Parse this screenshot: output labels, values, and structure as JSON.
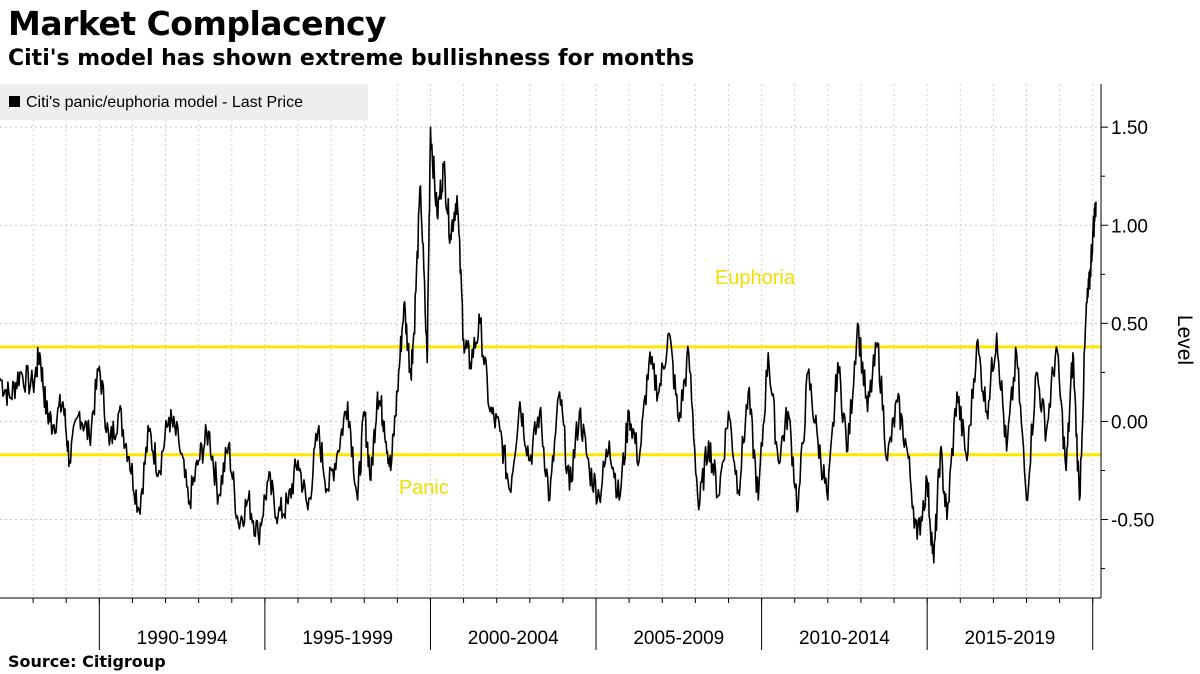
{
  "header": {
    "title": "Market Complacency",
    "subtitle": "Citi's model has shown extreme bullishness for months"
  },
  "footer": {
    "source": "Source:  Citigroup"
  },
  "chart_data": {
    "type": "line",
    "title": "Market Complacency",
    "subtitle": "Citi's model has shown extreme bullishness for months",
    "ylabel": "Level",
    "xlabel": "",
    "ylim": [
      -0.9,
      1.72
    ],
    "xlim": [
      1987,
      2020.25
    ],
    "yticks": [
      -0.5,
      0.0,
      0.5,
      1.0,
      1.5
    ],
    "ytick_labels": [
      "-0.50",
      "0.00",
      "0.50",
      "1.00",
      "1.50"
    ],
    "x_periods": [
      {
        "label": "1990-1994",
        "start": 1990,
        "end": 1995
      },
      {
        "label": "1995-1999",
        "start": 1995,
        "end": 2000
      },
      {
        "label": "2000-2004",
        "start": 2000,
        "end": 2005
      },
      {
        "label": "2005-2009",
        "start": 2005,
        "end": 2010
      },
      {
        "label": "2010-2014",
        "start": 2010,
        "end": 2015
      },
      {
        "label": "2015-2019",
        "start": 2015,
        "end": 2020
      }
    ],
    "legend": {
      "label": "Citi's panic/euphoria model - Last Price",
      "position": "top-left"
    },
    "reference_lines": [
      {
        "name": "euphoria-threshold",
        "label": "Euphoria",
        "value": 0.38,
        "color": "#FFE600"
      },
      {
        "name": "panic-threshold",
        "label": "Panic",
        "value": -0.17,
        "color": "#FFE600"
      }
    ],
    "annotations": [
      {
        "text": "Euphoria",
        "x": 2009.8,
        "y": 0.7
      },
      {
        "text": "Panic",
        "x": 1999.8,
        "y": -0.37
      }
    ],
    "series": [
      {
        "name": "Citi's panic/euphoria model - Last Price",
        "color": "#000000",
        "x": [
          1987.0,
          1987.3,
          1987.6,
          1988.0,
          1988.2,
          1988.4,
          1988.6,
          1988.9,
          1989.1,
          1989.4,
          1989.7,
          1990.0,
          1990.3,
          1990.6,
          1990.9,
          1991.2,
          1991.5,
          1991.8,
          1992.1,
          1992.4,
          1992.7,
          1993.0,
          1993.3,
          1993.6,
          1993.9,
          1994.2,
          1994.5,
          1994.8,
          1995.1,
          1995.4,
          1995.7,
          1996.0,
          1996.3,
          1996.6,
          1996.9,
          1997.2,
          1997.5,
          1997.8,
          1998.0,
          1998.2,
          1998.4,
          1998.6,
          1998.8,
          1999.0,
          1999.2,
          1999.4,
          1999.5,
          1999.7,
          1999.9,
          2000.0,
          2000.2,
          2000.4,
          2000.6,
          2000.8,
          2001.0,
          2001.2,
          2001.5,
          2001.8,
          2002.1,
          2002.4,
          2002.7,
          2003.0,
          2003.3,
          2003.6,
          2003.9,
          2004.2,
          2004.5,
          2004.8,
          2005.1,
          2005.4,
          2005.7,
          2006.0,
          2006.3,
          2006.6,
          2006.9,
          2007.2,
          2007.5,
          2007.8,
          2008.1,
          2008.4,
          2008.7,
          2009.0,
          2009.3,
          2009.6,
          2009.9,
          2010.2,
          2010.5,
          2010.8,
          2011.1,
          2011.4,
          2011.7,
          2012.0,
          2012.3,
          2012.6,
          2012.9,
          2013.2,
          2013.5,
          2013.8,
          2014.1,
          2014.4,
          2014.7,
          2015.0,
          2015.2,
          2015.4,
          2015.6,
          2015.9,
          2016.2,
          2016.5,
          2016.8,
          2017.1,
          2017.4,
          2017.7,
          2018.0,
          2018.3,
          2018.6,
          2018.9,
          2019.2,
          2019.4,
          2019.6,
          2019.8,
          2019.9,
          2020.0,
          2020.1
        ],
        "values": [
          0.22,
          0.12,
          0.25,
          0.18,
          0.35,
          0.05,
          -0.02,
          0.1,
          -0.2,
          0.05,
          -0.08,
          0.28,
          -0.12,
          0.05,
          -0.18,
          -0.45,
          -0.05,
          -0.25,
          0.02,
          -0.1,
          -0.42,
          -0.2,
          -0.05,
          -0.38,
          -0.12,
          -0.52,
          -0.4,
          -0.58,
          -0.3,
          -0.48,
          -0.42,
          -0.2,
          -0.45,
          -0.05,
          -0.35,
          -0.15,
          0.1,
          -0.4,
          0.05,
          -0.3,
          0.15,
          0.0,
          -0.25,
          0.15,
          0.6,
          0.25,
          0.45,
          1.2,
          0.3,
          1.5,
          1.05,
          1.3,
          0.95,
          1.15,
          0.42,
          0.3,
          0.5,
          0.05,
          -0.05,
          -0.35,
          0.1,
          -0.2,
          0.05,
          -0.4,
          0.15,
          -0.35,
          0.05,
          -0.25,
          -0.38,
          -0.1,
          -0.4,
          0.05,
          -0.2,
          0.3,
          0.15,
          0.45,
          0.0,
          0.35,
          -0.45,
          -0.1,
          -0.38,
          0.05,
          -0.35,
          0.15,
          -0.4,
          0.35,
          -0.2,
          0.05,
          -0.45,
          0.25,
          -0.1,
          -0.4,
          0.3,
          -0.15,
          0.5,
          0.05,
          0.4,
          -0.2,
          0.1,
          -0.15,
          -0.6,
          -0.3,
          -0.72,
          -0.15,
          -0.5,
          0.15,
          -0.2,
          0.4,
          0.05,
          0.45,
          -0.15,
          0.35,
          -0.4,
          0.25,
          -0.05,
          0.38,
          -0.25,
          0.35,
          -0.4,
          0.55,
          0.7,
          0.95,
          1.12
        ]
      }
    ]
  }
}
